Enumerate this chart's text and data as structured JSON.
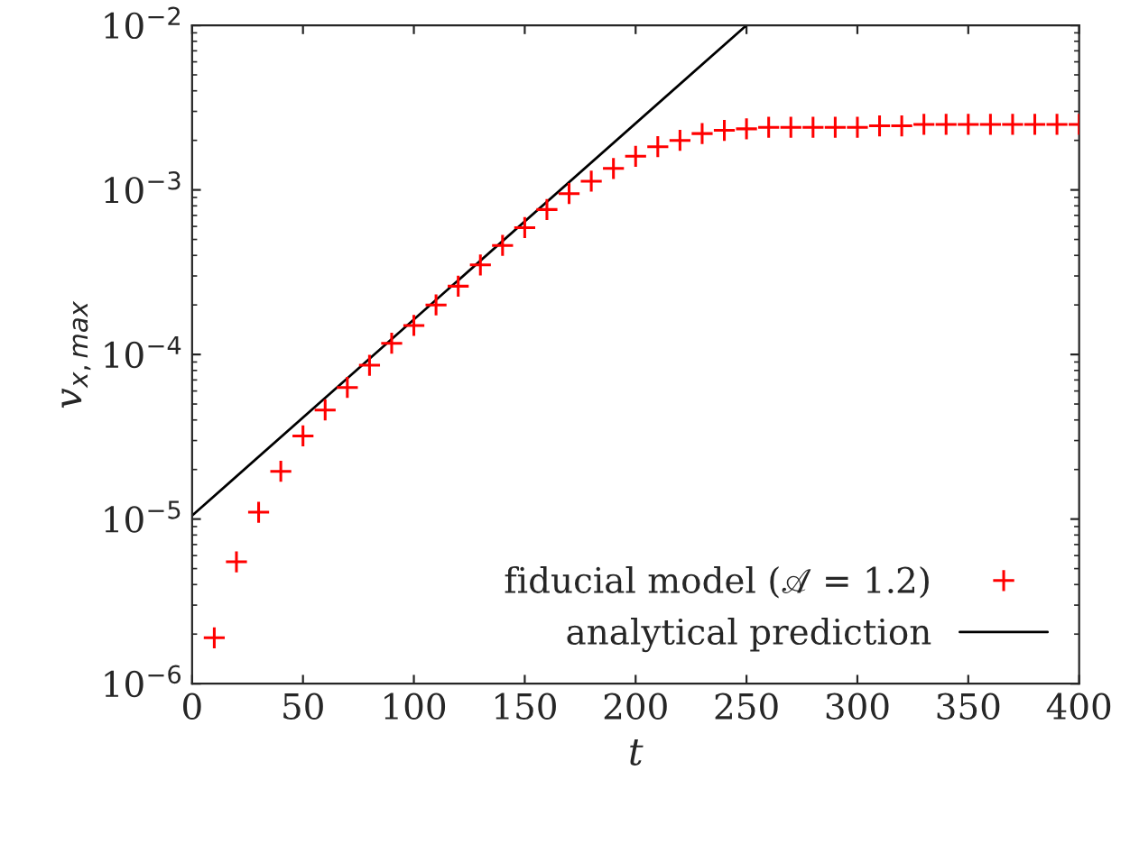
{
  "chart_data": {
    "type": "scatter",
    "xlabel": "t",
    "ylabel": "v$_{x,max}$",
    "log": "y",
    "xlim": [
      0,
      400
    ],
    "xticks": [
      0,
      50,
      100,
      150,
      200,
      250,
      300,
      350,
      400
    ],
    "ylim": [
      1e-06,
      0.01
    ],
    "yticks": [
      {
        "value": 1e-06,
        "label": "10$^{−6}$"
      },
      {
        "value": 1e-05,
        "label": "10$^{−5}$"
      },
      {
        "value": 0.0001,
        "label": "10$^{−4}$"
      },
      {
        "value": 0.001,
        "label": "10$^{−3}$"
      },
      {
        "value": 0.01,
        "label": "10$^{−2}$"
      }
    ],
    "legend": "bottom right",
    "grid": false,
    "series": [
      {
        "name": "fiducial model (𝒜 = 1.2)",
        "marker": "cross",
        "color": "#ff0000",
        "x": [
          10,
          20,
          30,
          40,
          50,
          60,
          70,
          80,
          90,
          100,
          110,
          120,
          130,
          140,
          150,
          160,
          170,
          180,
          190,
          200,
          210,
          220,
          230,
          240,
          250,
          260,
          270,
          280,
          290,
          300,
          310,
          320,
          330,
          340,
          350,
          360,
          370,
          380,
          390,
          400
        ],
        "values": [
          1.9e-06,
          5.5e-06,
          1.1e-05,
          1.95e-05,
          3.2e-05,
          4.6e-05,
          6.3e-05,
          8.6e-05,
          0.000117,
          0.00015,
          0.0002,
          0.00026,
          0.00035,
          0.00046,
          0.00059,
          0.00076,
          0.00095,
          0.00113,
          0.00135,
          0.0016,
          0.00183,
          0.002,
          0.0022,
          0.0023,
          0.00235,
          0.0024,
          0.0024,
          0.0024,
          0.0024,
          0.0024,
          0.00245,
          0.00245,
          0.0025,
          0.0025,
          0.0025,
          0.0025,
          0.0025,
          0.0025,
          0.0025,
          0.0025
        ]
      },
      {
        "name": "analytical prediction",
        "type": "line",
        "line_style": "solid",
        "color": "#000000",
        "x": [
          0,
          250
        ],
        "values": [
          1.05e-05,
          0.01
        ]
      }
    ]
  }
}
